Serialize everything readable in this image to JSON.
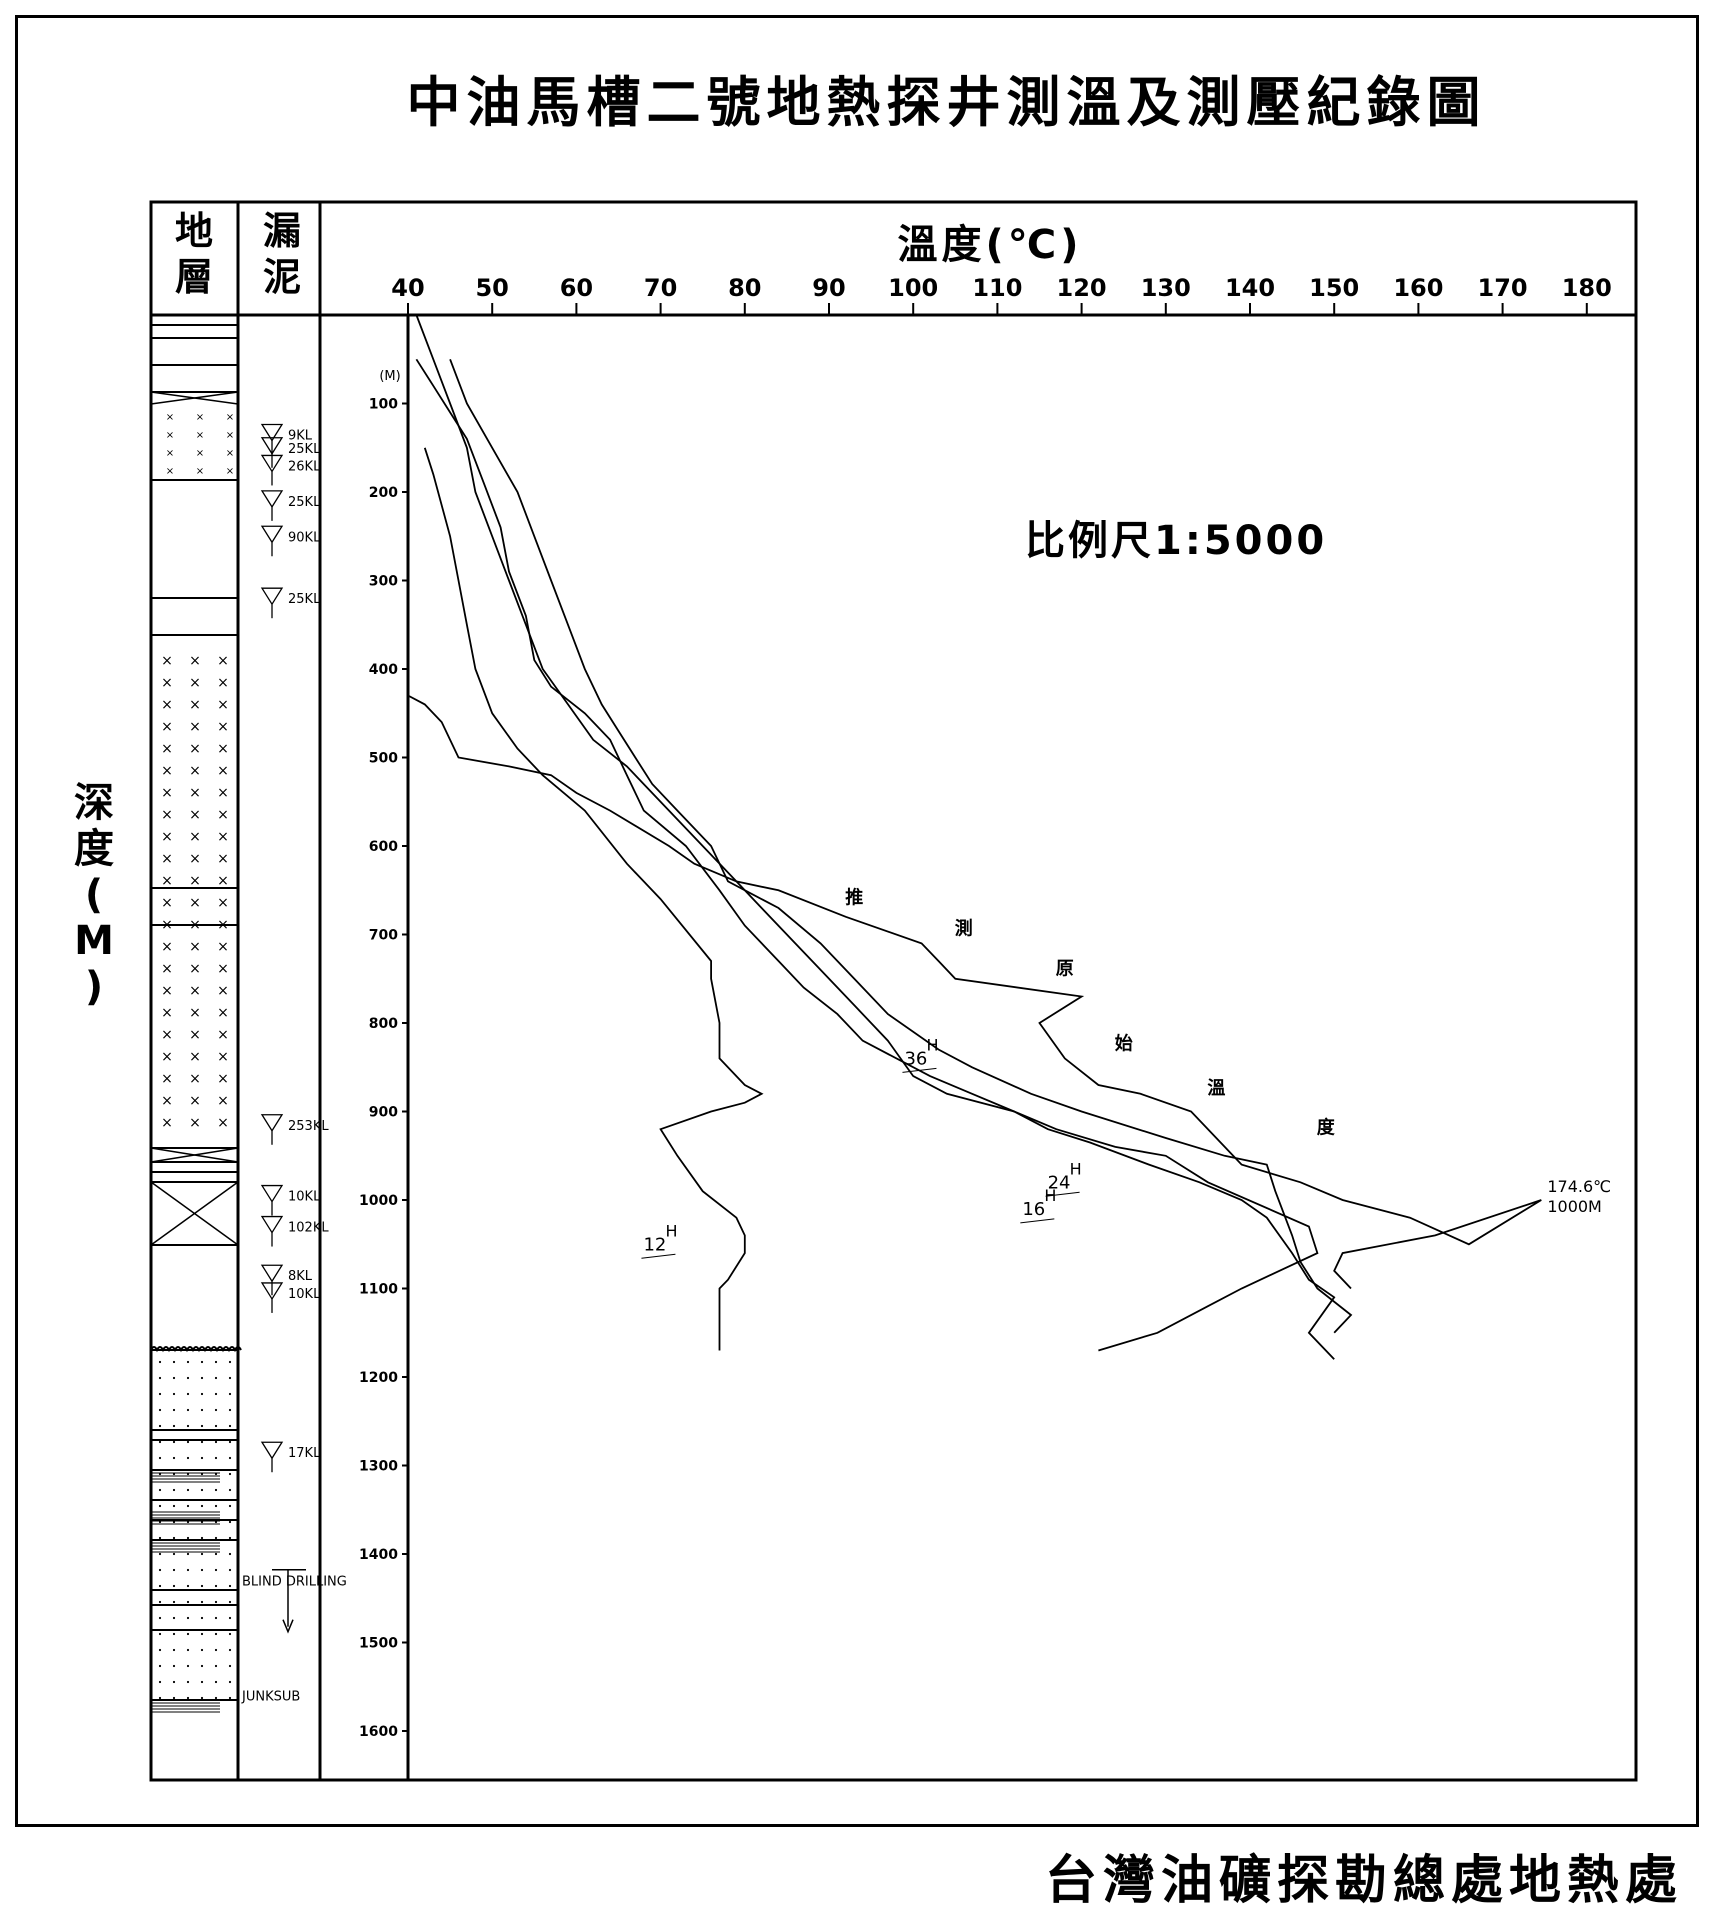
{
  "title": "中油馬槽二號地熱探井測溫及測壓紀錄圖",
  "footer": "台灣油礦探勘總處地熱處",
  "scale_label": "比例尺1:5000",
  "y_axis_title": "深度(M)",
  "header": {
    "strata": "地層",
    "mud_loss": "漏泥"
  },
  "x_axis_title": "溫度(℃)",
  "depth_unit_label": "(M)",
  "colors": {
    "line": "#000000",
    "background": "#ffffff"
  },
  "chart_data": {
    "type": "line",
    "xlabel": "溫度(℃)",
    "ylabel": "深度(M)",
    "xlim": [
      40,
      185
    ],
    "ylim": [
      0,
      1650
    ],
    "x_ticks": [
      40,
      50,
      60,
      70,
      80,
      90,
      100,
      110,
      120,
      130,
      140,
      150,
      160,
      170,
      180
    ],
    "y_ticks": [
      100,
      200,
      300,
      400,
      500,
      600,
      700,
      800,
      900,
      1000,
      1100,
      1200,
      1300,
      1400,
      1500,
      1600
    ],
    "y_inverted": true,
    "series": [
      {
        "name": "12H",
        "points": [
          [
            42,
            150
          ],
          [
            43,
            180
          ],
          [
            45,
            250
          ],
          [
            46,
            300
          ],
          [
            47,
            350
          ],
          [
            48,
            400
          ],
          [
            50,
            450
          ],
          [
            53,
            490
          ],
          [
            56,
            520
          ],
          [
            61,
            560
          ],
          [
            66,
            620
          ],
          [
            70,
            660
          ],
          [
            76,
            730
          ],
          [
            76,
            750
          ],
          [
            77,
            800
          ],
          [
            77,
            840
          ],
          [
            80,
            870
          ],
          [
            82,
            880
          ],
          [
            80,
            890
          ],
          [
            76,
            900
          ],
          [
            70,
            920
          ],
          [
            72,
            950
          ],
          [
            75,
            990
          ],
          [
            79,
            1020
          ],
          [
            80,
            1040
          ],
          [
            80,
            1060
          ],
          [
            78,
            1090
          ],
          [
            77,
            1100
          ],
          [
            77,
            1130
          ],
          [
            77,
            1170
          ]
        ]
      },
      {
        "name": "16H",
        "points": [
          [
            41,
            50
          ],
          [
            43,
            80
          ],
          [
            45,
            110
          ],
          [
            47,
            140
          ],
          [
            49,
            190
          ],
          [
            51,
            240
          ],
          [
            52,
            290
          ],
          [
            54,
            340
          ],
          [
            55,
            390
          ],
          [
            57,
            420
          ],
          [
            61,
            450
          ],
          [
            64,
            480
          ],
          [
            66,
            520
          ],
          [
            68,
            560
          ],
          [
            73,
            600
          ],
          [
            77,
            650
          ],
          [
            80,
            690
          ],
          [
            84,
            730
          ],
          [
            87,
            760
          ],
          [
            91,
            790
          ],
          [
            94,
            820
          ],
          [
            102,
            860
          ],
          [
            107,
            880
          ],
          [
            112,
            900
          ],
          [
            117,
            920
          ],
          [
            124,
            940
          ],
          [
            130,
            950
          ],
          [
            135,
            980
          ],
          [
            147,
            1030
          ],
          [
            148,
            1060
          ],
          [
            139,
            1100
          ],
          [
            135,
            1120
          ],
          [
            129,
            1150
          ],
          [
            122,
            1170
          ]
        ]
      },
      {
        "name": "24H",
        "points": [
          [
            45,
            50
          ],
          [
            47,
            100
          ],
          [
            50,
            150
          ],
          [
            53,
            200
          ],
          [
            55,
            250
          ],
          [
            57,
            300
          ],
          [
            59,
            350
          ],
          [
            61,
            400
          ],
          [
            63,
            440
          ],
          [
            65,
            470
          ],
          [
            67,
            500
          ],
          [
            69,
            530
          ],
          [
            72,
            560
          ],
          [
            76,
            600
          ],
          [
            78,
            640
          ],
          [
            84,
            670
          ],
          [
            89,
            710
          ],
          [
            93,
            750
          ],
          [
            97,
            790
          ],
          [
            103,
            830
          ],
          [
            107,
            850
          ],
          [
            114,
            880
          ],
          [
            120,
            900
          ],
          [
            130,
            930
          ],
          [
            137,
            950
          ],
          [
            142,
            960
          ],
          [
            143,
            990
          ],
          [
            145,
            1040
          ],
          [
            146,
            1070
          ],
          [
            148,
            1100
          ],
          [
            152,
            1130
          ],
          [
            150,
            1150
          ]
        ]
      },
      {
        "name": "36H",
        "points": [
          [
            41,
            0
          ],
          [
            43,
            50
          ],
          [
            45,
            100
          ],
          [
            47,
            150
          ],
          [
            48,
            200
          ],
          [
            50,
            250
          ],
          [
            52,
            300
          ],
          [
            54,
            350
          ],
          [
            56,
            400
          ],
          [
            59,
            440
          ],
          [
            62,
            480
          ],
          [
            66,
            510
          ],
          [
            71,
            560
          ],
          [
            75,
            600
          ],
          [
            79,
            640
          ],
          [
            82,
            670
          ],
          [
            86,
            710
          ],
          [
            89,
            740
          ],
          [
            93,
            780
          ],
          [
            97,
            820
          ],
          [
            100,
            860
          ],
          [
            104,
            880
          ],
          [
            112,
            900
          ],
          [
            116,
            920
          ],
          [
            121,
            935
          ],
          [
            128,
            960
          ],
          [
            134,
            980
          ],
          [
            139,
            1000
          ],
          [
            142,
            1020
          ],
          [
            145,
            1060
          ],
          [
            147,
            1090
          ],
          [
            150,
            1110
          ],
          [
            147,
            1150
          ],
          [
            150,
            1180
          ]
        ]
      },
      {
        "name": "推測原始溫度",
        "points": [
          [
            40,
            430
          ],
          [
            42,
            440
          ],
          [
            44,
            460
          ],
          [
            46,
            500
          ],
          [
            52,
            510
          ],
          [
            57,
            520
          ],
          [
            60,
            540
          ],
          [
            64,
            560
          ],
          [
            71,
            600
          ],
          [
            74,
            620
          ],
          [
            79,
            640
          ],
          [
            84,
            650
          ],
          [
            92,
            680
          ],
          [
            101,
            710
          ],
          [
            103,
            730
          ],
          [
            105,
            750
          ],
          [
            120,
            770
          ],
          [
            115,
            800
          ],
          [
            118,
            840
          ],
          [
            122,
            870
          ],
          [
            127,
            880
          ],
          [
            133,
            900
          ],
          [
            136,
            930
          ],
          [
            139,
            960
          ],
          [
            146,
            980
          ],
          [
            151,
            1000
          ],
          [
            159,
            1020
          ],
          [
            166,
            1050
          ],
          [
            174.6,
            1000
          ],
          [
            162,
            1040
          ],
          [
            151,
            1060
          ],
          [
            150,
            1080
          ],
          [
            152,
            1100
          ]
        ]
      }
    ],
    "point_labels": [
      {
        "text": "174.6℃",
        "sub": "1000M",
        "x": 174.6,
        "y": 1000
      },
      {
        "text": "12H",
        "x": 72,
        "y": 1050
      },
      {
        "text": "16H",
        "x": 117,
        "y": 1010
      },
      {
        "text": "24H",
        "x": 120,
        "y": 980
      },
      {
        "text": "36H",
        "x": 103,
        "y": 840
      }
    ],
    "curve_label_chars": [
      {
        "text": "推",
        "x": 93,
        "y": 665
      },
      {
        "text": "測",
        "x": 106,
        "y": 700
      },
      {
        "text": "原",
        "x": 118,
        "y": 745
      },
      {
        "text": "始",
        "x": 125,
        "y": 830
      },
      {
        "text": "溫",
        "x": 136,
        "y": 880
      },
      {
        "text": "度",
        "x": 149,
        "y": 925
      }
    ]
  },
  "mud_loss_events": [
    {
      "label": "9KL",
      "depth": 135
    },
    {
      "label": "25KL",
      "depth": 150
    },
    {
      "label": "26KL",
      "depth": 170
    },
    {
      "label": "25KL",
      "depth": 210
    },
    {
      "label": "90KL",
      "depth": 250
    },
    {
      "label": "25KL",
      "depth": 320
    },
    {
      "label": "253KL",
      "depth": 915
    },
    {
      "label": "10KL",
      "depth": 995
    },
    {
      "label": "102KL",
      "depth": 1030
    },
    {
      "label": "8KL",
      "depth": 1085
    },
    {
      "label": "10KL",
      "depth": 1105
    },
    {
      "label": "17KL",
      "depth": 1285
    },
    {
      "label": "BLIND DRILLING",
      "depth": 1420
    },
    {
      "label": "JUNKSUB",
      "depth": 1560
    }
  ]
}
